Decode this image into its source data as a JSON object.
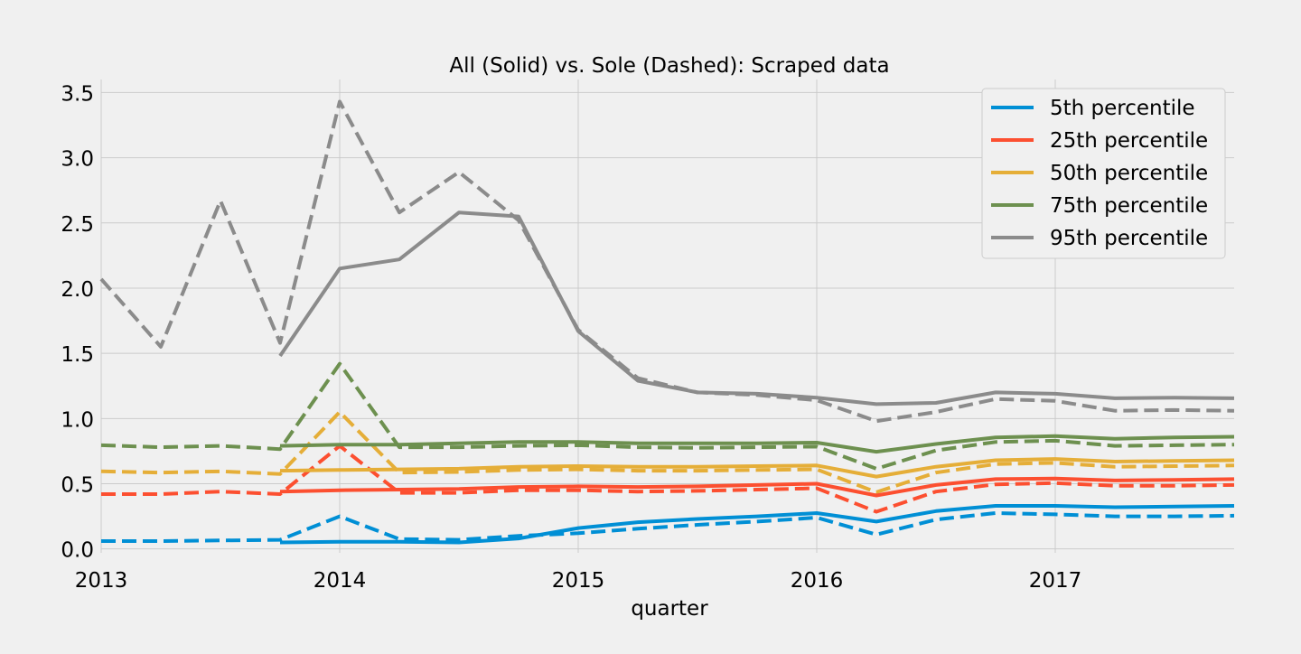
{
  "chart_data": {
    "type": "line",
    "title": "All (Solid) vs. Sole (Dashed): Scraped data",
    "xlabel": "quarter",
    "ylabel": "",
    "xlim": [
      2013.0,
      2017.75
    ],
    "ylim": [
      -0.03,
      3.6
    ],
    "x_ticks": [
      2013,
      2014,
      2015,
      2016,
      2017
    ],
    "x_tick_labels": [
      "2013",
      "2014",
      "2015",
      "2016",
      "2017"
    ],
    "y_ticks": [
      0.0,
      0.5,
      1.0,
      1.5,
      2.0,
      2.5,
      3.0,
      3.5
    ],
    "y_tick_labels": [
      "0.0",
      "0.5",
      "1.0",
      "1.5",
      "2.0",
      "2.5",
      "3.0",
      "3.5"
    ],
    "grid": true,
    "legend_position": "top-right",
    "series": [
      {
        "name": "5th percentile",
        "color": "#008fd5",
        "style": "solid",
        "points": [
          [
            2013.75,
            0.05
          ],
          [
            2014.0,
            0.055
          ],
          [
            2014.25,
            0.055
          ],
          [
            2014.5,
            0.05
          ],
          [
            2014.75,
            0.08
          ],
          [
            2015.0,
            0.16
          ],
          [
            2015.25,
            0.205
          ],
          [
            2015.5,
            0.23
          ],
          [
            2015.75,
            0.25
          ],
          [
            2016.0,
            0.275
          ],
          [
            2016.25,
            0.21
          ],
          [
            2016.5,
            0.29
          ],
          [
            2016.75,
            0.33
          ],
          [
            2017.0,
            0.33
          ],
          [
            2017.25,
            0.32
          ],
          [
            2017.5,
            0.325
          ],
          [
            2017.75,
            0.33
          ]
        ]
      },
      {
        "name": "25th percentile",
        "color": "#fc4f30",
        "style": "solid",
        "points": [
          [
            2013.75,
            0.44
          ],
          [
            2014.0,
            0.45
          ],
          [
            2014.25,
            0.455
          ],
          [
            2014.5,
            0.46
          ],
          [
            2014.75,
            0.475
          ],
          [
            2015.0,
            0.48
          ],
          [
            2015.25,
            0.475
          ],
          [
            2015.5,
            0.48
          ],
          [
            2015.75,
            0.49
          ],
          [
            2016.0,
            0.5
          ],
          [
            2016.25,
            0.41
          ],
          [
            2016.5,
            0.49
          ],
          [
            2016.75,
            0.535
          ],
          [
            2017.0,
            0.54
          ],
          [
            2017.25,
            0.525
          ],
          [
            2017.5,
            0.53
          ],
          [
            2017.75,
            0.535
          ]
        ]
      },
      {
        "name": "50th percentile",
        "color": "#e5ae38",
        "style": "solid",
        "points": [
          [
            2013.75,
            0.6
          ],
          [
            2014.0,
            0.605
          ],
          [
            2014.25,
            0.61
          ],
          [
            2014.5,
            0.615
          ],
          [
            2014.75,
            0.63
          ],
          [
            2015.0,
            0.635
          ],
          [
            2015.25,
            0.63
          ],
          [
            2015.5,
            0.63
          ],
          [
            2015.75,
            0.635
          ],
          [
            2016.0,
            0.64
          ],
          [
            2016.25,
            0.555
          ],
          [
            2016.5,
            0.63
          ],
          [
            2016.75,
            0.68
          ],
          [
            2017.0,
            0.69
          ],
          [
            2017.25,
            0.67
          ],
          [
            2017.5,
            0.675
          ],
          [
            2017.75,
            0.68
          ]
        ]
      },
      {
        "name": "75th percentile",
        "color": "#6d904f",
        "style": "solid",
        "points": [
          [
            2013.75,
            0.79
          ],
          [
            2014.0,
            0.8
          ],
          [
            2014.25,
            0.8
          ],
          [
            2014.5,
            0.81
          ],
          [
            2014.75,
            0.82
          ],
          [
            2015.0,
            0.82
          ],
          [
            2015.25,
            0.81
          ],
          [
            2015.5,
            0.81
          ],
          [
            2015.75,
            0.81
          ],
          [
            2016.0,
            0.815
          ],
          [
            2016.25,
            0.745
          ],
          [
            2016.5,
            0.805
          ],
          [
            2016.75,
            0.855
          ],
          [
            2017.0,
            0.865
          ],
          [
            2017.25,
            0.845
          ],
          [
            2017.5,
            0.855
          ],
          [
            2017.75,
            0.86
          ]
        ]
      },
      {
        "name": "95th percentile",
        "color": "#8b8b8b",
        "style": "solid",
        "points": [
          [
            2013.75,
            1.48
          ],
          [
            2014.0,
            2.15
          ],
          [
            2014.25,
            2.22
          ],
          [
            2014.5,
            2.58
          ],
          [
            2014.75,
            2.55
          ],
          [
            2015.0,
            1.67
          ],
          [
            2015.25,
            1.29
          ],
          [
            2015.5,
            1.2
          ],
          [
            2015.75,
            1.19
          ],
          [
            2016.0,
            1.16
          ],
          [
            2016.25,
            1.11
          ],
          [
            2016.5,
            1.12
          ],
          [
            2016.75,
            1.2
          ],
          [
            2017.0,
            1.19
          ],
          [
            2017.25,
            1.155
          ],
          [
            2017.5,
            1.16
          ],
          [
            2017.75,
            1.155
          ]
        ]
      },
      {
        "name": "5th percentile (sole)",
        "color": "#008fd5",
        "style": "dashed",
        "points": [
          [
            2013.0,
            0.06
          ],
          [
            2013.25,
            0.06
          ],
          [
            2013.5,
            0.065
          ],
          [
            2013.75,
            0.07
          ],
          [
            2014.0,
            0.25
          ],
          [
            2014.25,
            0.075
          ],
          [
            2014.5,
            0.07
          ],
          [
            2014.75,
            0.1
          ],
          [
            2015.0,
            0.12
          ],
          [
            2015.25,
            0.155
          ],
          [
            2015.5,
            0.185
          ],
          [
            2015.75,
            0.21
          ],
          [
            2016.0,
            0.24
          ],
          [
            2016.25,
            0.11
          ],
          [
            2016.5,
            0.225
          ],
          [
            2016.75,
            0.275
          ],
          [
            2017.0,
            0.265
          ],
          [
            2017.25,
            0.25
          ],
          [
            2017.5,
            0.25
          ],
          [
            2017.75,
            0.255
          ]
        ]
      },
      {
        "name": "25th percentile (sole)",
        "color": "#fc4f30",
        "style": "dashed",
        "points": [
          [
            2013.0,
            0.42
          ],
          [
            2013.25,
            0.42
          ],
          [
            2013.5,
            0.44
          ],
          [
            2013.75,
            0.42
          ],
          [
            2014.0,
            0.79
          ],
          [
            2014.25,
            0.43
          ],
          [
            2014.5,
            0.43
          ],
          [
            2014.75,
            0.45
          ],
          [
            2015.0,
            0.45
          ],
          [
            2015.25,
            0.44
          ],
          [
            2015.5,
            0.445
          ],
          [
            2015.75,
            0.455
          ],
          [
            2016.0,
            0.465
          ],
          [
            2016.25,
            0.285
          ],
          [
            2016.5,
            0.44
          ],
          [
            2016.75,
            0.495
          ],
          [
            2017.0,
            0.505
          ],
          [
            2017.25,
            0.485
          ],
          [
            2017.5,
            0.485
          ],
          [
            2017.75,
            0.49
          ]
        ]
      },
      {
        "name": "50th percentile (sole)",
        "color": "#e5ae38",
        "style": "dashed",
        "points": [
          [
            2013.0,
            0.595
          ],
          [
            2013.25,
            0.585
          ],
          [
            2013.5,
            0.595
          ],
          [
            2013.75,
            0.575
          ],
          [
            2014.0,
            1.05
          ],
          [
            2014.25,
            0.585
          ],
          [
            2014.5,
            0.59
          ],
          [
            2014.75,
            0.605
          ],
          [
            2015.0,
            0.61
          ],
          [
            2015.25,
            0.6
          ],
          [
            2015.5,
            0.6
          ],
          [
            2015.75,
            0.605
          ],
          [
            2016.0,
            0.61
          ],
          [
            2016.25,
            0.435
          ],
          [
            2016.5,
            0.585
          ],
          [
            2016.75,
            0.65
          ],
          [
            2017.0,
            0.66
          ],
          [
            2017.25,
            0.63
          ],
          [
            2017.5,
            0.635
          ],
          [
            2017.75,
            0.64
          ]
        ]
      },
      {
        "name": "75th percentile (sole)",
        "color": "#6d904f",
        "style": "dashed",
        "points": [
          [
            2013.0,
            0.795
          ],
          [
            2013.25,
            0.78
          ],
          [
            2013.5,
            0.79
          ],
          [
            2013.75,
            0.765
          ],
          [
            2014.0,
            1.42
          ],
          [
            2014.25,
            0.78
          ],
          [
            2014.5,
            0.78
          ],
          [
            2014.75,
            0.79
          ],
          [
            2015.0,
            0.795
          ],
          [
            2015.25,
            0.78
          ],
          [
            2015.5,
            0.775
          ],
          [
            2015.75,
            0.78
          ],
          [
            2016.0,
            0.785
          ],
          [
            2016.25,
            0.615
          ],
          [
            2016.5,
            0.755
          ],
          [
            2016.75,
            0.82
          ],
          [
            2017.0,
            0.83
          ],
          [
            2017.25,
            0.79
          ],
          [
            2017.5,
            0.795
          ],
          [
            2017.75,
            0.8
          ]
        ]
      },
      {
        "name": "95th percentile (sole)",
        "color": "#8b8b8b",
        "style": "dashed",
        "points": [
          [
            2013.0,
            2.07
          ],
          [
            2013.25,
            1.55
          ],
          [
            2013.5,
            2.67
          ],
          [
            2013.75,
            1.58
          ],
          [
            2014.0,
            3.43
          ],
          [
            2014.25,
            2.58
          ],
          [
            2014.5,
            2.89
          ],
          [
            2014.75,
            2.52
          ],
          [
            2015.0,
            1.68
          ],
          [
            2015.25,
            1.31
          ],
          [
            2015.5,
            1.2
          ],
          [
            2015.75,
            1.18
          ],
          [
            2016.0,
            1.14
          ],
          [
            2016.25,
            0.98
          ],
          [
            2016.5,
            1.05
          ],
          [
            2016.75,
            1.15
          ],
          [
            2017.0,
            1.135
          ],
          [
            2017.25,
            1.06
          ],
          [
            2017.5,
            1.065
          ],
          [
            2017.75,
            1.06
          ]
        ]
      }
    ],
    "legend": [
      {
        "label": "5th percentile",
        "color": "#008fd5"
      },
      {
        "label": "25th percentile",
        "color": "#fc4f30"
      },
      {
        "label": "50th percentile",
        "color": "#e5ae38"
      },
      {
        "label": "75th percentile",
        "color": "#6d904f"
      },
      {
        "label": "95th percentile",
        "color": "#8b8b8b"
      }
    ]
  }
}
